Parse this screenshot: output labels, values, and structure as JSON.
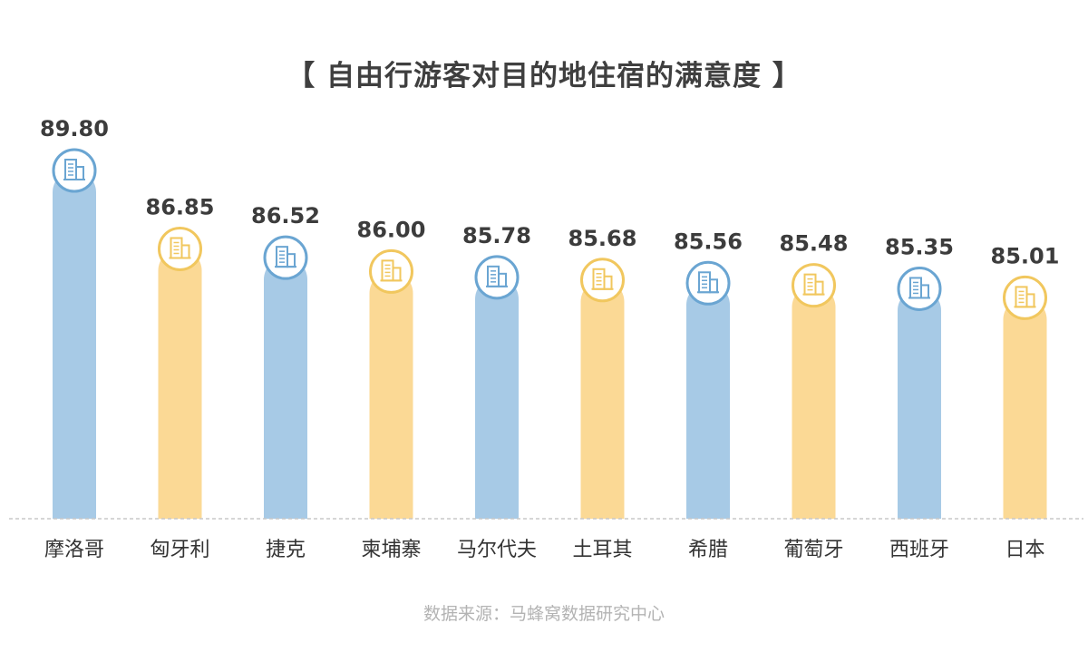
{
  "chart_data": {
    "type": "bar",
    "title": "【 自由行游客对目的地住宿的满意度 】",
    "categories": [
      "摩洛哥",
      "匈牙利",
      "捷克",
      "柬埔寨",
      "马尔代夫",
      "土耳其",
      "希腊",
      "葡萄牙",
      "西班牙",
      "日本"
    ],
    "values": [
      89.8,
      86.85,
      86.52,
      86.0,
      85.78,
      85.68,
      85.56,
      85.48,
      85.35,
      85.01
    ],
    "value_labels": [
      "89.80",
      "86.85",
      "86.52",
      "86.00",
      "85.78",
      "85.68",
      "85.56",
      "85.48",
      "85.35",
      "85.01"
    ],
    "bar_colors": [
      "#a7cae6",
      "#fbd995",
      "#a7cae6",
      "#fbd995",
      "#a7cae6",
      "#fbd995",
      "#a7cae6",
      "#fbd995",
      "#a7cae6",
      "#fbd995"
    ],
    "icon_stroke_colors": [
      "#6aa5d2",
      "#f1c75e",
      "#6aa5d2",
      "#f1c75e",
      "#6aa5d2",
      "#f1c75e",
      "#6aa5d2",
      "#f1c75e",
      "#6aa5d2",
      "#f1c75e"
    ],
    "icon": "building-icon",
    "xlabel": "",
    "ylabel": "",
    "ylim": [
      76.7,
      89.8
    ],
    "grid": false,
    "legend": "none"
  },
  "source": "数据来源：马蜂窝数据研究中心"
}
